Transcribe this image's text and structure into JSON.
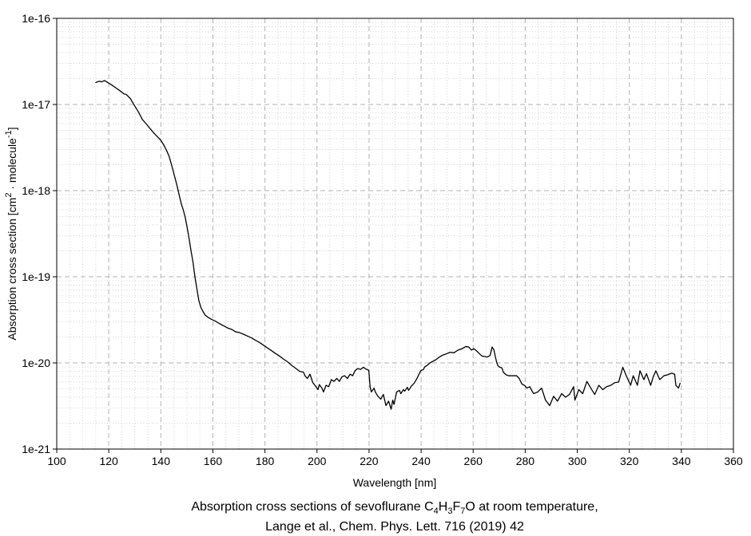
{
  "page": {
    "background": "#ffffff"
  },
  "chart_data": {
    "type": "line",
    "xlabel": "Wavelength [nm]",
    "ylabel_parts": [
      {
        "t": "Absorption cross section [cm",
        "style": "normal"
      },
      {
        "t": "2",
        "style": "sup"
      },
      {
        "t": " · molecule",
        "style": "normal"
      },
      {
        "t": "-1",
        "style": "sup"
      },
      {
        "t": "]",
        "style": "normal"
      }
    ],
    "caption_line1_parts": [
      {
        "t": "Absorption cross sections of sevoflurane C",
        "style": "normal"
      },
      {
        "t": "4",
        "style": "sub"
      },
      {
        "t": "H",
        "style": "normal"
      },
      {
        "t": "3",
        "style": "sub"
      },
      {
        "t": "F",
        "style": "normal"
      },
      {
        "t": "7",
        "style": "sub"
      },
      {
        "t": "O at room temperature,",
        "style": "normal"
      }
    ],
    "caption_line2": "Lange et al., Chem. Phys. Lett. 716 (2019) 42",
    "xlim": [
      100,
      360
    ],
    "ylim": [
      1e-21,
      1e-16
    ],
    "x_major_step": 20,
    "x_minor_step": 5,
    "x_tick_labels": [
      "100",
      "120",
      "140",
      "160",
      "180",
      "200",
      "220",
      "240",
      "260",
      "280",
      "300",
      "320",
      "340",
      "360"
    ],
    "y_major_ticks": [
      {
        "v": 1e-16,
        "label": "1e-16"
      },
      {
        "v": 1e-17,
        "label": "1e-17"
      },
      {
        "v": 1e-18,
        "label": "1e-18"
      },
      {
        "v": 1e-19,
        "label": "1e-19"
      },
      {
        "v": 1e-20,
        "label": "1e-20"
      },
      {
        "v": 1e-21,
        "label": "1e-21"
      }
    ],
    "grid": {
      "major_color": "#b3b3b3",
      "minor_color": "#d2d2d2",
      "major_dash": "6 4",
      "minor_dash": "1 2.5"
    },
    "line_color": "#000000",
    "axis_color": "#000000",
    "legend_position": "none",
    "series": [
      {
        "name": "sevoflurane absorption cross section",
        "points": [
          [
            115.0,
            1.8e-17
          ],
          [
            115.8,
            1.84e-17
          ],
          [
            116.5,
            1.86e-17
          ],
          [
            117.3,
            1.83e-17
          ],
          [
            118.3,
            1.9e-17
          ],
          [
            119.6,
            1.8e-17
          ],
          [
            121.2,
            1.68e-17
          ],
          [
            122.7,
            1.56e-17
          ],
          [
            124.2,
            1.45e-17
          ],
          [
            125.8,
            1.33e-17
          ],
          [
            126.8,
            1.3e-17
          ],
          [
            128.3,
            1.17e-17
          ],
          [
            129.8,
            9.8e-18
          ],
          [
            131.4,
            8.2e-18
          ],
          [
            132.9,
            6.7e-18
          ],
          [
            134.5,
            5.9e-18
          ],
          [
            136.0,
            5.2e-18
          ],
          [
            137.5,
            4.6e-18
          ],
          [
            139.1,
            4.1e-18
          ],
          [
            140.1,
            3.8e-18
          ],
          [
            141.1,
            3.4e-18
          ],
          [
            142.1,
            2.97e-18
          ],
          [
            143.2,
            2.5e-18
          ],
          [
            144.2,
            1.95e-18
          ],
          [
            145.2,
            1.5e-18
          ],
          [
            146.2,
            1.15e-18
          ],
          [
            147.2,
            8.5e-19
          ],
          [
            148.0,
            6.8e-19
          ],
          [
            148.6,
            6e-19
          ],
          [
            149.3,
            5e-19
          ],
          [
            150.0,
            3.9e-19
          ],
          [
            150.8,
            2.85e-19
          ],
          [
            151.6,
            2e-19
          ],
          [
            152.4,
            1.45e-19
          ],
          [
            153.1,
            1e-19
          ],
          [
            153.9,
            7.1e-20
          ],
          [
            154.6,
            5.3e-20
          ],
          [
            155.4,
            4.4e-20
          ],
          [
            156.1,
            4e-20
          ],
          [
            157.0,
            3.6e-20
          ],
          [
            158.0,
            3.4e-20
          ],
          [
            159.5,
            3.2e-20
          ],
          [
            161.0,
            3.05e-20
          ],
          [
            162.6,
            2.85e-20
          ],
          [
            164.1,
            2.7e-20
          ],
          [
            165.6,
            2.55e-20
          ],
          [
            167.2,
            2.45e-20
          ],
          [
            168.7,
            2.3e-20
          ],
          [
            170.2,
            2.25e-20
          ],
          [
            171.8,
            2.15e-20
          ],
          [
            173.3,
            2.05e-20
          ],
          [
            174.9,
            1.95e-20
          ],
          [
            176.4,
            1.83e-20
          ],
          [
            177.9,
            1.73e-20
          ],
          [
            179.5,
            1.6e-20
          ],
          [
            181.0,
            1.49e-20
          ],
          [
            182.5,
            1.39e-20
          ],
          [
            184.0,
            1.29e-20
          ],
          [
            185.6,
            1.2e-20
          ],
          [
            187.1,
            1.11e-20
          ],
          [
            188.7,
            1.03e-20
          ],
          [
            190.2,
            9.4e-21
          ],
          [
            191.7,
            8.7e-21
          ],
          [
            193.3,
            8e-21
          ],
          [
            194.8,
            7.8e-21
          ],
          [
            195.5,
            7e-21
          ],
          [
            196.3,
            6.6e-21
          ],
          [
            197.3,
            7.4e-21
          ],
          [
            198.4,
            5.9e-21
          ],
          [
            199.4,
            5.4e-21
          ],
          [
            200.4,
            4.9e-21
          ],
          [
            200.9,
            5.6e-21
          ],
          [
            201.9,
            5.1e-21
          ],
          [
            202.5,
            4.6e-21
          ],
          [
            203.5,
            5.5e-21
          ],
          [
            204.5,
            5.3e-21
          ],
          [
            205.5,
            6.4e-21
          ],
          [
            206.5,
            6.1e-21
          ],
          [
            207.6,
            6.6e-21
          ],
          [
            208.6,
            6.1e-21
          ],
          [
            209.6,
            6.9e-21
          ],
          [
            210.6,
            7.1e-21
          ],
          [
            211.7,
            6.6e-21
          ],
          [
            212.7,
            7.4e-21
          ],
          [
            213.7,
            7.1e-21
          ],
          [
            214.7,
            8.2e-21
          ],
          [
            215.7,
            8.6e-21
          ],
          [
            216.8,
            8.4e-21
          ],
          [
            217.8,
            8.9e-21
          ],
          [
            218.8,
            8.5e-21
          ],
          [
            219.9,
            8.2e-21
          ],
          [
            220.4,
            5.3e-21
          ],
          [
            220.9,
            4.6e-21
          ],
          [
            221.9,
            5.1e-21
          ],
          [
            222.4,
            4.6e-21
          ],
          [
            223.4,
            4.1e-21
          ],
          [
            224.5,
            3.8e-21
          ],
          [
            225.5,
            4.3e-21
          ],
          [
            226.5,
            3.2e-21
          ],
          [
            227.5,
            3.6e-21
          ],
          [
            228.5,
            2.9e-21
          ],
          [
            229.1,
            3.7e-21
          ],
          [
            229.6,
            3.3e-21
          ],
          [
            230.6,
            4.6e-21
          ],
          [
            231.7,
            4.8e-21
          ],
          [
            232.2,
            4.4e-21
          ],
          [
            233.2,
            4.9e-21
          ],
          [
            233.7,
            4.7e-21
          ],
          [
            234.7,
            5.2e-21
          ],
          [
            235.2,
            4.8e-21
          ],
          [
            236.3,
            5.4e-21
          ],
          [
            237.3,
            5.8e-21
          ],
          [
            238.3,
            6.5e-21
          ],
          [
            239.3,
            7.5e-21
          ],
          [
            239.8,
            8.1e-21
          ],
          [
            240.9,
            8.4e-21
          ],
          [
            241.4,
            9e-21
          ],
          [
            242.4,
            9.4e-21
          ],
          [
            243.4,
            1e-20
          ],
          [
            244.4,
            1.04e-20
          ],
          [
            245.5,
            1.08e-20
          ],
          [
            246.5,
            1.14e-20
          ],
          [
            248.0,
            1.22e-20
          ],
          [
            249.6,
            1.27e-20
          ],
          [
            251.1,
            1.33e-20
          ],
          [
            252.6,
            1.31e-20
          ],
          [
            254.2,
            1.41e-20
          ],
          [
            255.7,
            1.46e-20
          ],
          [
            257.2,
            1.55e-20
          ],
          [
            258.3,
            1.53e-20
          ],
          [
            259.3,
            1.41e-20
          ],
          [
            260.3,
            1.46e-20
          ],
          [
            261.3,
            1.38e-20
          ],
          [
            262.4,
            1.28e-20
          ],
          [
            263.4,
            1.2e-20
          ],
          [
            264.4,
            1.19e-20
          ],
          [
            265.4,
            1.17e-20
          ],
          [
            266.5,
            1.22e-20
          ],
          [
            267.3,
            1.53e-20
          ],
          [
            268.0,
            1.41e-20
          ],
          [
            268.5,
            1.19e-20
          ],
          [
            269.0,
            1.03e-20
          ],
          [
            269.5,
            9.3e-21
          ],
          [
            270.0,
            9e-21
          ],
          [
            271.1,
            8.7e-21
          ],
          [
            271.6,
            7.8e-21
          ],
          [
            272.6,
            7.3e-21
          ],
          [
            273.6,
            7.1e-21
          ],
          [
            274.6,
            7.1e-21
          ],
          [
            276.7,
            7.1e-21
          ],
          [
            277.7,
            6.6e-21
          ],
          [
            278.7,
            5.7e-21
          ],
          [
            279.7,
            5.5e-21
          ],
          [
            280.7,
            5.1e-21
          ],
          [
            281.8,
            5.3e-21
          ],
          [
            282.8,
            4.6e-21
          ],
          [
            283.3,
            4.4e-21
          ],
          [
            284.8,
            4.6e-21
          ],
          [
            286.3,
            5.1e-21
          ],
          [
            287.8,
            3.7e-21
          ],
          [
            289.4,
            3.2e-21
          ],
          [
            290.9,
            4.1e-21
          ],
          [
            292.4,
            3.6e-21
          ],
          [
            294.0,
            4.4e-21
          ],
          [
            295.5,
            4e-21
          ],
          [
            297.0,
            4.3e-21
          ],
          [
            298.6,
            5.3e-21
          ],
          [
            299.1,
            3.7e-21
          ],
          [
            300.6,
            4.9e-21
          ],
          [
            302.1,
            4.4e-21
          ],
          [
            303.7,
            6.1e-21
          ],
          [
            305.2,
            5.1e-21
          ],
          [
            306.7,
            4.3e-21
          ],
          [
            308.3,
            5.5e-21
          ],
          [
            309.8,
            4.9e-21
          ],
          [
            311.3,
            5.3e-21
          ],
          [
            312.9,
            5.5e-21
          ],
          [
            314.4,
            5.9e-21
          ],
          [
            315.9,
            6e-21
          ],
          [
            317.5,
            8.9e-21
          ],
          [
            319.0,
            6.9e-21
          ],
          [
            320.5,
            5.5e-21
          ],
          [
            321.5,
            7.1e-21
          ],
          [
            323.1,
            5.5e-21
          ],
          [
            324.1,
            8.1e-21
          ],
          [
            325.6,
            6.4e-21
          ],
          [
            326.6,
            7.5e-21
          ],
          [
            328.2,
            5.5e-21
          ],
          [
            329.2,
            6.9e-21
          ],
          [
            330.2,
            8.1e-21
          ],
          [
            331.7,
            6.4e-21
          ],
          [
            333.3,
            7.1e-21
          ],
          [
            334.8,
            7.3e-21
          ],
          [
            336.3,
            7.6e-21
          ],
          [
            337.4,
            7.4e-21
          ],
          [
            337.9,
            5.5e-21
          ],
          [
            338.9,
            5.1e-21
          ],
          [
            339.5,
            5.8e-21
          ]
        ]
      }
    ]
  }
}
